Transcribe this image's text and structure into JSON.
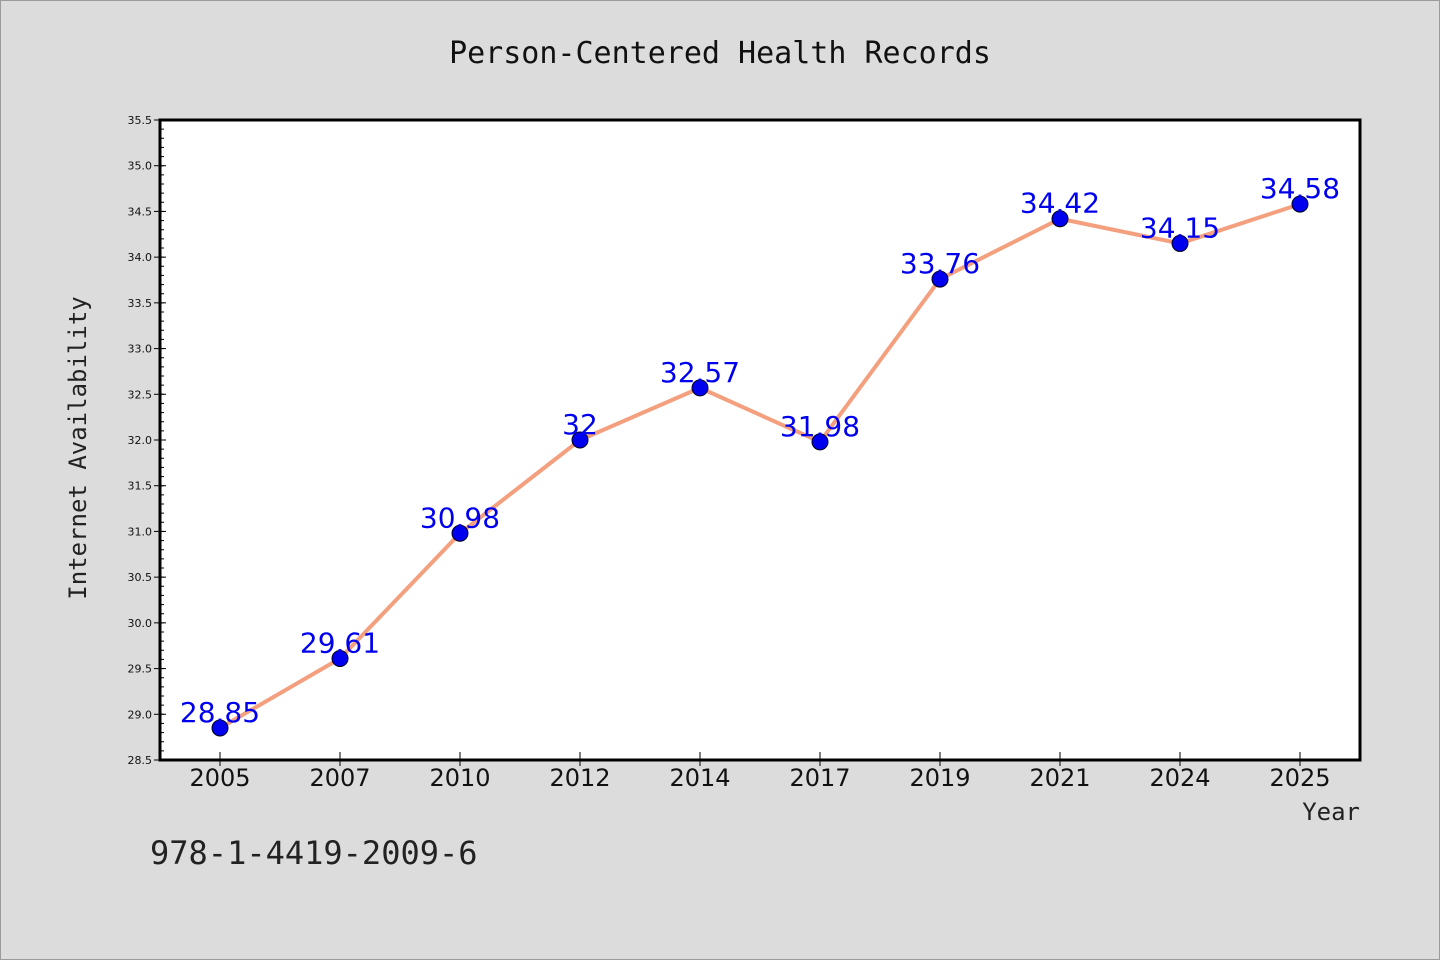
{
  "chart_data": {
    "type": "line",
    "title": "Person-Centered Health Records",
    "xlabel": "Year",
    "ylabel": "Internet Availability",
    "categories": [
      "2005",
      "2007",
      "2010",
      "2012",
      "2014",
      "2017",
      "2019",
      "2021",
      "2024",
      "2025"
    ],
    "values": [
      28.85,
      29.61,
      30.98,
      32,
      32.57,
      31.98,
      33.76,
      34.42,
      34.15,
      34.58
    ],
    "value_labels": [
      "28.85",
      "29.61",
      "30.98",
      "32",
      "32.57",
      "31.98",
      "33.76",
      "34.42",
      "34.15",
      "34.58"
    ],
    "ylim": [
      28.5,
      35.5
    ],
    "y_ticks": [
      "28.5",
      "29.0",
      "29.5",
      "30.0",
      "30.5",
      "31.0",
      "31.5",
      "32.0",
      "32.5",
      "33.0",
      "33.5",
      "34.0",
      "34.5",
      "35.0",
      "35.5"
    ],
    "grid": false,
    "line_color": "#f4a07e",
    "marker_color": "#0000ee",
    "label_color": "#0000ee"
  },
  "footer_code": "978-1-4419-2009-6"
}
